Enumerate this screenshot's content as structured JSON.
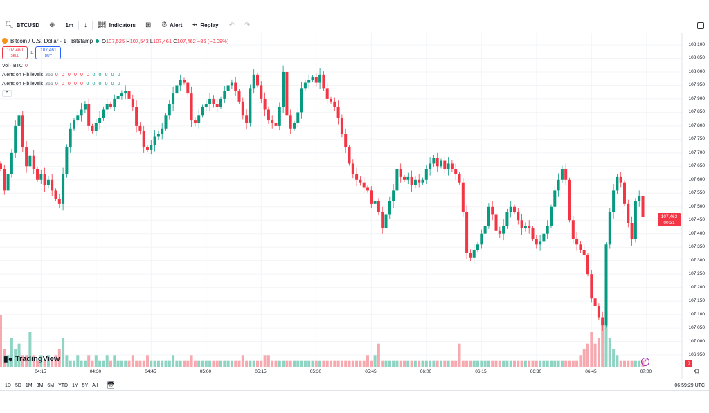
{
  "toolbar": {
    "symbol": "BTCUSD",
    "interval": "1m",
    "indicators": "Indicators",
    "alert": "Alert",
    "replay": "Replay"
  },
  "legend": {
    "title": "Bitcoin / U.S. Dollar · 1 · Bitstamp",
    "o_label": "O",
    "o": "107,525",
    "h_label": "H",
    "h": "107,543",
    "l_label": "L",
    "l": "107,461",
    "c_label": "C",
    "c": "107,462",
    "change": "−86 (−0.08%)",
    "sell_price": "107,460",
    "sell_label": "SELL",
    "buy_price": "107,461",
    "buy_label": "BUY",
    "spread": "1",
    "vol_label": "Vol · BTC",
    "vol_value": "0",
    "indicators": [
      {
        "label": "Alerts on Fib levels",
        "param": "365",
        "zeros_red": "0 0 0 0 0 0",
        "zeros_green": "0 0 0 0 0"
      },
      {
        "label": "Alerts on Fib levels",
        "param": "365",
        "zeros_red": "0 0 0 0 0",
        "zeros_green": "0 0 0 0 0 0"
      }
    ]
  },
  "price_axis": {
    "ticks": [
      "108,100",
      "108,050",
      "108,000",
      "107,950",
      "107,900",
      "107,850",
      "107,800",
      "107,750",
      "107,700",
      "107,650",
      "107,600",
      "107,550",
      "107,500",
      "107,450",
      "107,400",
      "107,350",
      "107,300",
      "107,250",
      "107,200",
      "107,150",
      "107,100",
      "107,050",
      "107,000",
      "106,950"
    ],
    "current_price": "107,462",
    "countdown": "00:31",
    "vol_badge": "0"
  },
  "time_axis": {
    "ticks": [
      "04:15",
      "04:30",
      "04:45",
      "05:00",
      "05:15",
      "05:30",
      "05:45",
      "06:00",
      "06:15",
      "06:30",
      "06:45",
      "07:00"
    ],
    "clock": "06:59:29 UTC"
  },
  "ranges": [
    "1D",
    "5D",
    "1M",
    "3M",
    "6M",
    "YTD",
    "1Y",
    "5Y",
    "All"
  ],
  "logo": "TradingView",
  "colors": {
    "up": "#089981",
    "down": "#f23645",
    "up_vol": "#8fd3c2",
    "down_vol": "#f7a9b0",
    "accent": "#2962ff"
  },
  "chart_data": {
    "type": "candlestick",
    "interval": "1m",
    "first_time": "04:04",
    "ylim": [
      106925,
      108125
    ],
    "close": [
      107640,
      107560,
      107620,
      107700,
      107800,
      107840,
      107720,
      107650,
      107690,
      107640,
      107600,
      107620,
      107580,
      107600,
      107560,
      107530,
      107510,
      107620,
      107720,
      107790,
      107820,
      107840,
      107860,
      107880,
      107800,
      107780,
      107810,
      107830,
      107860,
      107880,
      107870,
      107900,
      107910,
      107920,
      107930,
      107900,
      107870,
      107800,
      107780,
      107720,
      107710,
      107730,
      107760,
      107770,
      107790,
      107840,
      107880,
      107920,
      107950,
      107970,
      107960,
      107920,
      107820,
      107810,
      107840,
      107870,
      107880,
      107900,
      107880,
      107870,
      107900,
      107930,
      107950,
      107960,
      107930,
      107890,
      107840,
      107810,
      107940,
      107990,
      107950,
      107900,
      107860,
      107820,
      107810,
      107800,
      107870,
      108000,
      107840,
      107790,
      107810,
      107850,
      107940,
      107960,
      107970,
      107980,
      107960,
      107990,
      107940,
      107900,
      107890,
      107870,
      107830,
      107770,
      107720,
      107660,
      107620,
      107600,
      107590,
      107570,
      107560,
      107510,
      107520,
      107480,
      107420,
      107470,
      107520,
      107560,
      107640,
      107610,
      107600,
      107610,
      107580,
      107600,
      107590,
      107600,
      107640,
      107660,
      107680,
      107650,
      107670,
      107640,
      107660,
      107640,
      107620,
      107590,
      107480,
      107330,
      107310,
      107340,
      107360,
      107400,
      107430,
      107500,
      107470,
      107410,
      107400,
      107430,
      107480,
      107500,
      107480,
      107450,
      107420,
      107430,
      107420,
      107380,
      107360,
      107370,
      107400,
      107430,
      107500,
      107560,
      107600,
      107640,
      107600,
      107450,
      107380,
      107360,
      107340,
      107320,
      107250,
      107160,
      107130,
      107090,
      107060,
      107360,
      107480,
      107560,
      107610,
      107590,
      107510,
      107440,
      107380,
      107520,
      107540,
      107462
    ],
    "volume": [
      9,
      3,
      2,
      5,
      3,
      4,
      2,
      2,
      6,
      2,
      1,
      2,
      1,
      2,
      1,
      2,
      3,
      5,
      2,
      1,
      1,
      2,
      1,
      1,
      2,
      1,
      2,
      1,
      1,
      2,
      1,
      2,
      1,
      1,
      1,
      1,
      2,
      1,
      1,
      1,
      2,
      1,
      1,
      1,
      1,
      1,
      1,
      2,
      1,
      1,
      1,
      1,
      2,
      1,
      1,
      1,
      1,
      1,
      1,
      1,
      1,
      1,
      1,
      1,
      1,
      1,
      2,
      1,
      1,
      1,
      1,
      1,
      2,
      2,
      1,
      1,
      1,
      1,
      1,
      1,
      1,
      1,
      1,
      1,
      1,
      1,
      1,
      1,
      1,
      1,
      1,
      1,
      1,
      1,
      1,
      1,
      1,
      1,
      1,
      1,
      2,
      1,
      2,
      4,
      1,
      1,
      1,
      1,
      1,
      1,
      1,
      1,
      1,
      1,
      1,
      1,
      1,
      1,
      1,
      1,
      1,
      1,
      1,
      1,
      1,
      4,
      1,
      1,
      1,
      1,
      1,
      1,
      1,
      1,
      1,
      1,
      1,
      1,
      1,
      1,
      1,
      1,
      1,
      1,
      1,
      1,
      1,
      1,
      1,
      1,
      1,
      1,
      1,
      1,
      1,
      1,
      1,
      1,
      2,
      3,
      4,
      6,
      4,
      5,
      8,
      9,
      5,
      3,
      2,
      1,
      1,
      1,
      1,
      1,
      1,
      1
    ]
  }
}
